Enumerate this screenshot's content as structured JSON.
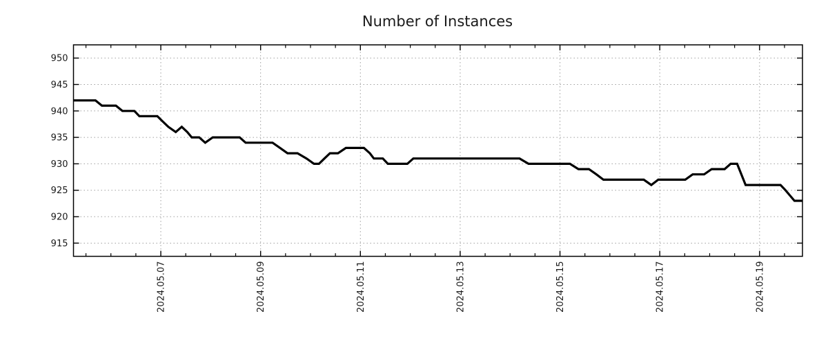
{
  "chart_data": {
    "type": "line",
    "title": "Number of Instances",
    "series_name": "instances",
    "x_unit": "days since 2024-05-05 00:00 (derived from visible date tick labels)",
    "xlim": [
      0.25,
      14.86
    ],
    "ylim": [
      912.5,
      952.5
    ],
    "xticks": {
      "positions": [
        2,
        4,
        6,
        8,
        10,
        12,
        14
      ],
      "labels": [
        "2024.05.07",
        "2024.05.09",
        "2024.05.11",
        "2024.05.13",
        "2024.05.15",
        "2024.05.17",
        "2024.05.19"
      ]
    },
    "x_minor_tick_step": 0.5,
    "yticks": [
      915,
      920,
      925,
      930,
      935,
      940,
      945,
      950
    ],
    "grid": "dotted gray, major ticks only, both axes",
    "legend": "none",
    "line_color": "#000000",
    "line_width": 3.2,
    "grid_color": "#9e9e9e",
    "border_color": "#000000",
    "background": "#ffffff",
    "points": [
      [
        0.25,
        942
      ],
      [
        0.69,
        942
      ],
      [
        0.82,
        941
      ],
      [
        1.1,
        941
      ],
      [
        1.23,
        940
      ],
      [
        1.47,
        940
      ],
      [
        1.57,
        939
      ],
      [
        1.93,
        939
      ],
      [
        2.04,
        938
      ],
      [
        2.15,
        937
      ],
      [
        2.3,
        936
      ],
      [
        2.42,
        937
      ],
      [
        2.53,
        936
      ],
      [
        2.62,
        935
      ],
      [
        2.77,
        935
      ],
      [
        2.89,
        934
      ],
      [
        3.04,
        935
      ],
      [
        3.58,
        935
      ],
      [
        3.7,
        934
      ],
      [
        4.24,
        934
      ],
      [
        4.39,
        933
      ],
      [
        4.54,
        932
      ],
      [
        4.74,
        932
      ],
      [
        4.92,
        931
      ],
      [
        5.07,
        930
      ],
      [
        5.17,
        930
      ],
      [
        5.28,
        931
      ],
      [
        5.39,
        932
      ],
      [
        5.55,
        932
      ],
      [
        5.71,
        933
      ],
      [
        6.07,
        933
      ],
      [
        6.19,
        932
      ],
      [
        6.27,
        931
      ],
      [
        6.45,
        931
      ],
      [
        6.55,
        930
      ],
      [
        6.94,
        930
      ],
      [
        7.06,
        931
      ],
      [
        9.19,
        931
      ],
      [
        9.37,
        930
      ],
      [
        10.2,
        930
      ],
      [
        10.37,
        929
      ],
      [
        10.58,
        929
      ],
      [
        10.73,
        928
      ],
      [
        10.87,
        927
      ],
      [
        11.68,
        927
      ],
      [
        11.83,
        926
      ],
      [
        11.97,
        927
      ],
      [
        12.51,
        927
      ],
      [
        12.66,
        928
      ],
      [
        12.89,
        928
      ],
      [
        13.04,
        929
      ],
      [
        13.3,
        929
      ],
      [
        13.42,
        930
      ],
      [
        13.55,
        930
      ],
      [
        13.72,
        926
      ],
      [
        14.42,
        926
      ],
      [
        14.52,
        925
      ],
      [
        14.61,
        924
      ],
      [
        14.7,
        923
      ],
      [
        14.86,
        923
      ]
    ]
  }
}
